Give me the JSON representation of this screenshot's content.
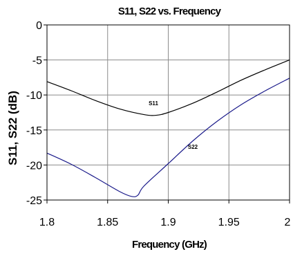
{
  "chart_data": {
    "type": "line",
    "title": "S11, S22 vs. Frequency",
    "xlabel": "Frequency (GHz)",
    "ylabel": "S11, S22 (dB)",
    "xlim": [
      1.8,
      2.0
    ],
    "ylim": [
      -25,
      0
    ],
    "xticks": [
      "1.8",
      "1.85",
      "1.9",
      "1.95",
      "2"
    ],
    "yticks": [
      "0",
      "-5",
      "-10",
      "-15",
      "-20",
      "-25"
    ],
    "grid": true,
    "legend": "none",
    "series": [
      {
        "name": "S11",
        "color": "#000000",
        "x": [
          1.8,
          1.82,
          1.84,
          1.86,
          1.88,
          1.89,
          1.9,
          1.92,
          1.94,
          1.96,
          1.98,
          2.0
        ],
        "y": [
          -8.1,
          -9.4,
          -10.8,
          -12.0,
          -12.8,
          -12.9,
          -12.5,
          -11.2,
          -9.6,
          -7.9,
          -6.4,
          -5.0
        ]
      },
      {
        "name": "S22",
        "color": "#1a1a8a",
        "x": [
          1.8,
          1.82,
          1.84,
          1.86,
          1.87,
          1.875,
          1.88,
          1.9,
          1.92,
          1.94,
          1.96,
          1.98,
          2.0
        ],
        "y": [
          -18.3,
          -19.9,
          -21.8,
          -23.8,
          -24.5,
          -24.3,
          -23.0,
          -19.8,
          -16.6,
          -13.8,
          -11.4,
          -9.4,
          -7.6
        ]
      }
    ]
  }
}
